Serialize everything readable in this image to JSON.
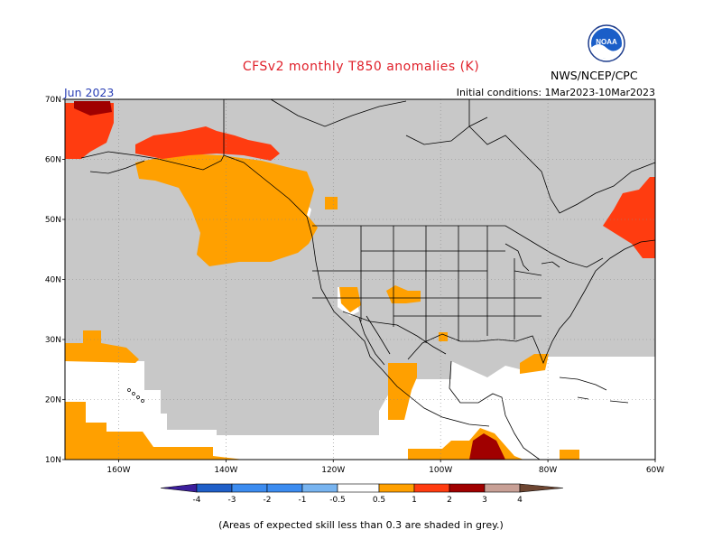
{
  "header": {
    "title": "CFSv2 monthly T850 anomalies (K)",
    "month": "Jun 2023",
    "agency": "NWS/NCEP/CPC",
    "initial_conditions": "Initial conditions: 1Mar2023-10Mar2023",
    "logo_text": "NOAA"
  },
  "axes": {
    "lat_labels": [
      "70N",
      "60N",
      "50N",
      "40N",
      "30N",
      "20N",
      "10N"
    ],
    "lon_labels": [
      "160W",
      "140W",
      "120W",
      "100W",
      "80W",
      "60W"
    ],
    "lat_range": [
      10,
      70
    ],
    "lon_range": [
      -170,
      -60
    ]
  },
  "colorbar": {
    "tick_labels": [
      "-4",
      "-3",
      "-2",
      "-1",
      "-0.5",
      "0.5",
      "1",
      "2",
      "3",
      "4"
    ],
    "colors": [
      "#3c1e9c",
      "#1f5fc8",
      "#3c8cf0",
      "#78b4f0",
      "#ffffff",
      "#ffa000",
      "#ff3c10",
      "#a00000",
      "#c8a096",
      "#6e4632"
    ],
    "neutral_color": "#ffffff",
    "grey_color": "#c8c8c8"
  },
  "legend_note": "(Areas of expected skill less than 0.3 are shaded in grey.)"
}
